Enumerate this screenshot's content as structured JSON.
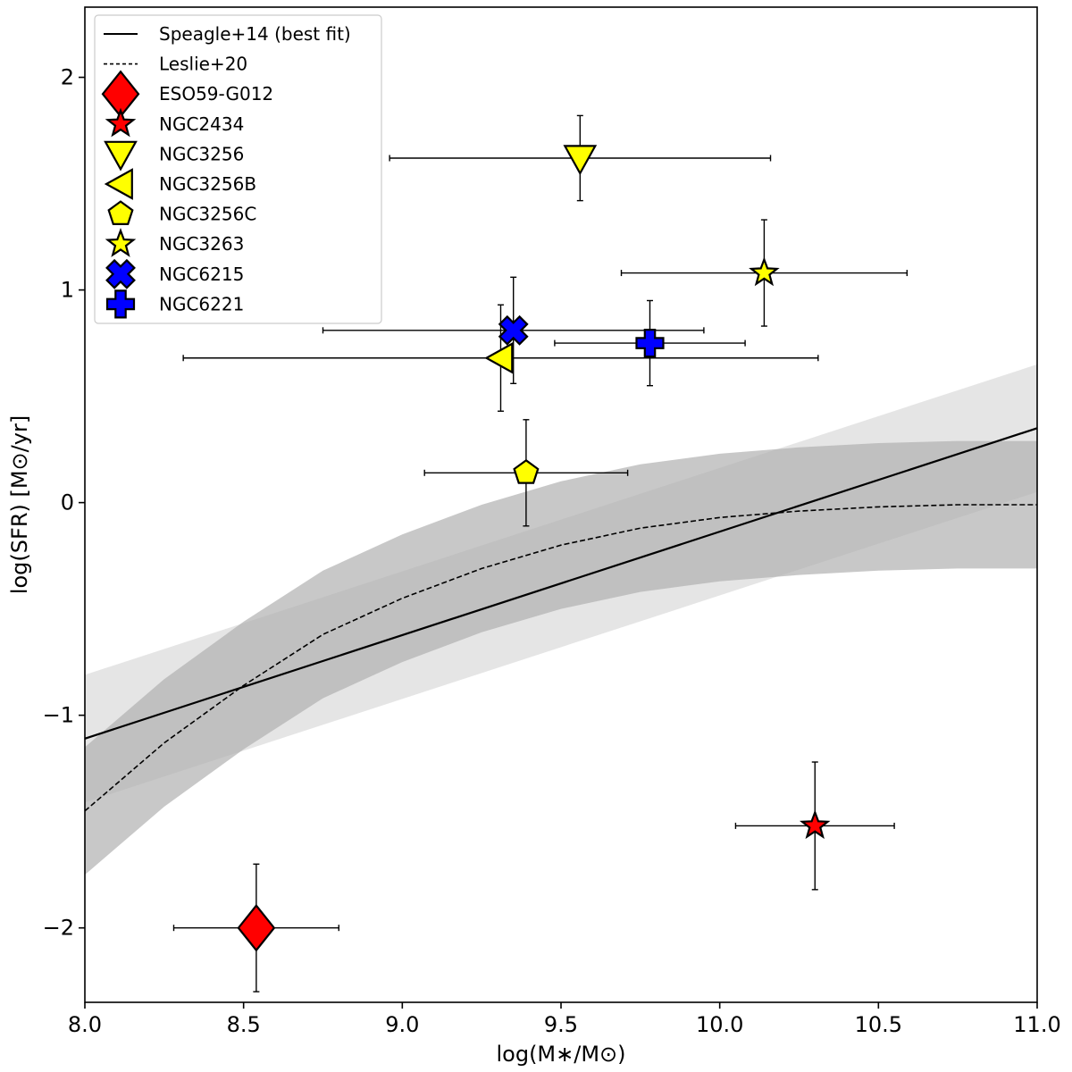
{
  "chart_data": {
    "type": "scatter",
    "title": "",
    "xlabel": "log(M∗/M⊙)",
    "ylabel": "log(SFR) [M⊙/yr]",
    "xlim": [
      8.0,
      11.0
    ],
    "ylim": [
      -2.35,
      2.33
    ],
    "xticks": [
      8.0,
      8.5,
      9.0,
      9.5,
      10.0,
      10.5,
      11.0
    ],
    "xtick_labels": [
      "8.0",
      "8.5",
      "9.0",
      "9.5",
      "10.0",
      "10.5",
      "11.0"
    ],
    "yticks": [
      -2,
      -1,
      0,
      1,
      2
    ],
    "ytick_labels": [
      "−2",
      "−1",
      "0",
      "1",
      "2"
    ],
    "grid": false,
    "legend_position": "top-left",
    "lines": [
      {
        "name": "Speagle+14 (best fit)",
        "style": "solid",
        "x": [
          8.0,
          11.0
        ],
        "y": [
          -1.11,
          0.35
        ]
      },
      {
        "name": "Leslie+20",
        "style": "dashed",
        "x": [
          8.0,
          8.25,
          8.5,
          8.75,
          9.0,
          9.25,
          9.5,
          9.75,
          10.0,
          10.25,
          10.5,
          10.75,
          11.0
        ],
        "y": [
          -1.45,
          -1.13,
          -0.86,
          -0.62,
          -0.45,
          -0.31,
          -0.2,
          -0.12,
          -0.07,
          -0.04,
          -0.02,
          -0.01,
          -0.01
        ]
      }
    ],
    "bands": [
      {
        "name": "Speagle+14 scatter",
        "color": "#e0e0e0",
        "x": [
          8.0,
          11.0
        ],
        "lower": [
          -1.41,
          0.05
        ],
        "upper": [
          -0.81,
          0.65
        ]
      },
      {
        "name": "Leslie+20 scatter",
        "color": "#b0b0b0",
        "x": [
          8.0,
          8.25,
          8.5,
          8.75,
          9.0,
          9.25,
          9.5,
          9.75,
          10.0,
          10.25,
          10.5,
          10.75,
          11.0
        ],
        "lower": [
          -1.75,
          -1.43,
          -1.16,
          -0.92,
          -0.75,
          -0.61,
          -0.5,
          -0.42,
          -0.37,
          -0.34,
          -0.32,
          -0.31,
          -0.31
        ],
        "upper": [
          -1.15,
          -0.83,
          -0.56,
          -0.32,
          -0.15,
          -0.01,
          0.1,
          0.18,
          0.23,
          0.26,
          0.28,
          0.29,
          0.29
        ]
      }
    ],
    "points": [
      {
        "name": "ESO59-G012",
        "marker": "diamond",
        "color": "#ff0000",
        "x": 8.54,
        "y": -2.0,
        "xerr": [
          0.26,
          0.26
        ],
        "yerr": [
          0.3,
          0.3
        ]
      },
      {
        "name": "NGC2434",
        "marker": "star",
        "color": "#ff0000",
        "x": 10.3,
        "y": -1.52,
        "xerr": [
          0.25,
          0.25
        ],
        "yerr": [
          0.3,
          0.3
        ]
      },
      {
        "name": "NGC3256",
        "marker": "triangle-down",
        "color": "#ffff00",
        "x": 9.56,
        "y": 1.62,
        "xerr": [
          0.6,
          0.6
        ],
        "yerr": [
          0.2,
          0.2
        ]
      },
      {
        "name": "NGC3256B",
        "marker": "triangle-left",
        "color": "#ffff00",
        "x": 9.31,
        "y": 0.68,
        "xerr": [
          1.0,
          1.0
        ],
        "yerr": [
          0.25,
          0.25
        ]
      },
      {
        "name": "NGC3256C",
        "marker": "pentagon",
        "color": "#ffff00",
        "x": 9.39,
        "y": 0.14,
        "xerr": [
          0.32,
          0.32
        ],
        "yerr": [
          0.25,
          0.25
        ]
      },
      {
        "name": "NGC3263",
        "marker": "star",
        "color": "#ffff00",
        "x": 10.14,
        "y": 1.08,
        "xerr": [
          0.45,
          0.45
        ],
        "yerr": [
          0.25,
          0.25
        ]
      },
      {
        "name": "NGC6215",
        "marker": "x",
        "color": "#0000ff",
        "x": 9.35,
        "y": 0.81,
        "xerr": [
          0.6,
          0.6
        ],
        "yerr": [
          0.25,
          0.25
        ]
      },
      {
        "name": "NGC6221",
        "marker": "plus",
        "color": "#0000ff",
        "x": 9.78,
        "y": 0.75,
        "xerr": [
          0.3,
          0.3
        ],
        "yerr": [
          0.2,
          0.2
        ]
      }
    ],
    "legend": [
      {
        "label": "Speagle+14 (best fit)",
        "kind": "line-solid"
      },
      {
        "label": "Leslie+20",
        "kind": "line-dashed"
      },
      {
        "label": "ESO59-G012",
        "kind": "marker",
        "marker": "diamond",
        "color": "#ff0000"
      },
      {
        "label": "NGC2434",
        "kind": "marker",
        "marker": "star",
        "color": "#ff0000"
      },
      {
        "label": "NGC3256",
        "kind": "marker",
        "marker": "triangle-down",
        "color": "#ffff00"
      },
      {
        "label": "NGC3256B",
        "kind": "marker",
        "marker": "triangle-left",
        "color": "#ffff00"
      },
      {
        "label": "NGC3256C",
        "kind": "marker",
        "marker": "pentagon",
        "color": "#ffff00"
      },
      {
        "label": "NGC3263",
        "kind": "marker",
        "marker": "star",
        "color": "#ffff00"
      },
      {
        "label": "NGC6215",
        "kind": "marker",
        "marker": "x",
        "color": "#0000ff"
      },
      {
        "label": "NGC6221",
        "kind": "marker",
        "marker": "plus",
        "color": "#0000ff"
      }
    ]
  }
}
